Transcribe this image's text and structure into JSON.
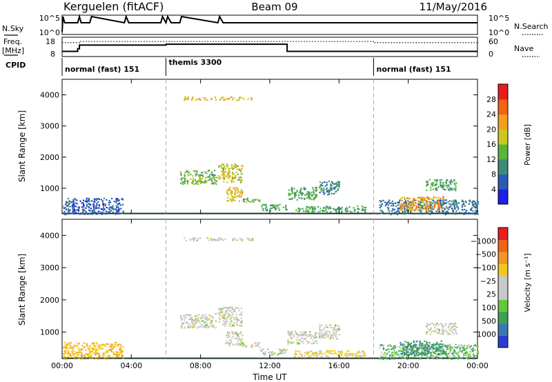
{
  "header": {
    "station": "Kerguelen (fitACF)",
    "beam": "Beam 09",
    "date": "11/May/2016"
  },
  "top_panels": {
    "nsky_label": "N.Sky",
    "nsky_ticks": [
      "10^5",
      "10^0"
    ],
    "nsearch_label": "N.Search",
    "nsearch_ticks": [
      "10^5",
      "10^0"
    ],
    "freq_label": "Freq.",
    "freq_unit": "[MHz]",
    "freq_ticks": [
      "18",
      "8"
    ],
    "nave_label": "Nave",
    "nave_ticks": [
      "60",
      "0"
    ],
    "cpid_label": "CPID"
  },
  "cpid_segments": [
    {
      "start": 0,
      "end": 6,
      "label": "normal (fast) 151"
    },
    {
      "start": 6,
      "end": 18,
      "label": "themis 3300"
    },
    {
      "start": 18,
      "end": 24,
      "label": "normal (fast) 151"
    }
  ],
  "colors": {
    "power_scale": [
      "#1f1fe6",
      "#2a5ab4",
      "#3c8c78",
      "#5ab43c",
      "#c8c81e",
      "#f0a01e",
      "#f06414",
      "#e61e1e"
    ],
    "velocity_scale": [
      "#2a3cd0",
      "#3c78b4",
      "#3ca05a",
      "#64c83c",
      "#c8c8c8",
      "#c8c8c8",
      "#f0c81e",
      "#f09628",
      "#f06414",
      "#e61e1e"
    ]
  },
  "chart_data": [
    {
      "type": "line",
      "title": "N.Sky / N.Search",
      "x_range": [
        0,
        24
      ],
      "ylim_log10": [
        0,
        5
      ],
      "series": [
        {
          "name": "N.Sky",
          "x": [
            0,
            0.05,
            0.15,
            0.25,
            0.9,
            1.0,
            1.1,
            1.6,
            1.7,
            3.6,
            3.7,
            3.85,
            5.7,
            5.8,
            6.0,
            6.1,
            6.3,
            6.8,
            6.9,
            9.0,
            9.1,
            9.3,
            24
          ],
          "y": [
            0.5,
            5,
            3.2,
            3.2,
            3.2,
            5,
            3.2,
            3.2,
            5,
            3.2,
            5,
            3.2,
            3.2,
            5,
            3.2,
            5,
            3.2,
            3.2,
            5,
            3.2,
            5,
            3.2,
            3.2
          ]
        },
        {
          "name": "N.Search",
          "x": [
            0,
            24
          ],
          "y": [
            3.2,
            3.2
          ]
        }
      ]
    },
    {
      "type": "line",
      "title": "Freq. / Nave",
      "x_range": [
        0,
        24
      ],
      "series": [
        {
          "name": "Freq. (MHz)",
          "ylim": [
            8,
            18
          ],
          "x": [
            0,
            0.9,
            0.9,
            1.0,
            1.0,
            6.0,
            6.0,
            13.0,
            13.0,
            24
          ],
          "y": [
            10.5,
            10.5,
            12.0,
            12.0,
            14.0,
            14.0,
            14.5,
            14.5,
            10.5,
            10.5
          ]
        },
        {
          "name": "Nave",
          "ylim": [
            0,
            60
          ],
          "x": [
            0,
            1.0,
            1.0,
            18.0,
            18.0,
            24
          ],
          "y": [
            44,
            44,
            48,
            48,
            44,
            44
          ]
        }
      ]
    },
    {
      "type": "heatmap",
      "title": "Power",
      "xlabel": "",
      "ylabel": "Slant Range [km]",
      "x_range": [
        0,
        24
      ],
      "ylim": [
        180,
        4500
      ],
      "x_ticks": [
        "00:00",
        "04:00",
        "08:00",
        "12:00",
        "16:00",
        "20:00",
        "00:00"
      ],
      "y_ticks": [
        1000,
        2000,
        3000,
        4000
      ],
      "colorbar_label": "Power [dB]",
      "colorbar_ticks": [
        4,
        8,
        12,
        16,
        20,
        24,
        28
      ],
      "echoes": [
        {
          "x": [
            0.0,
            3.5
          ],
          "range": [
            180,
            700
          ],
          "value": 6
        },
        {
          "x": [
            6.8,
            8.9
          ],
          "range": [
            1150,
            1600
          ],
          "value": 14
        },
        {
          "x": [
            9.0,
            10.4
          ],
          "range": [
            1200,
            1800
          ],
          "value": 18
        },
        {
          "x": [
            9.4,
            10.4
          ],
          "range": [
            600,
            1050
          ],
          "value": 20
        },
        {
          "x": [
            10.4,
            11.4
          ],
          "range": [
            550,
            700
          ],
          "value": 14
        },
        {
          "x": [
            11.4,
            13.0
          ],
          "range": [
            300,
            500
          ],
          "value": 12
        },
        {
          "x": [
            13.0,
            14.7
          ],
          "range": [
            650,
            1050
          ],
          "value": 12
        },
        {
          "x": [
            14.8,
            16.0
          ],
          "range": [
            800,
            1250
          ],
          "value": 10
        },
        {
          "x": [
            13.4,
            17.5
          ],
          "range": [
            250,
            450
          ],
          "value": 12
        },
        {
          "x": [
            18.3,
            24.0
          ],
          "range": [
            180,
            650
          ],
          "value": 8
        },
        {
          "x": [
            19.5,
            22.0
          ],
          "range": [
            300,
            750
          ],
          "value": 22
        },
        {
          "x": [
            21.0,
            22.8
          ],
          "range": [
            950,
            1300
          ],
          "value": 12
        },
        {
          "x": [
            7.0,
            11.0
          ],
          "range": [
            3850,
            3950
          ],
          "value": 20
        }
      ]
    },
    {
      "type": "heatmap",
      "title": "Velocity",
      "xlabel": "Time UT",
      "ylabel": "Slant Range [km]",
      "x_range": [
        0,
        24
      ],
      "ylim": [
        180,
        4500
      ],
      "x_ticks": [
        "00:00",
        "04:00",
        "08:00",
        "12:00",
        "16:00",
        "20:00",
        "00:00"
      ],
      "y_ticks": [
        1000,
        2000,
        3000,
        4000
      ],
      "colorbar_label": "Velocity [m s⁻¹]",
      "colorbar_ticks": [
        "1000",
        "500",
        "100",
        "25",
        "−25",
        "−100",
        "−500",
        "−1000"
      ],
      "echoes": [
        {
          "x": [
            0.0,
            3.5
          ],
          "range": [
            180,
            700
          ],
          "value": -80
        },
        {
          "x": [
            6.8,
            8.9
          ],
          "range": [
            1150,
            1600
          ],
          "value": 0
        },
        {
          "x": [
            9.0,
            10.4
          ],
          "range": [
            1200,
            1800
          ],
          "value": 0
        },
        {
          "x": [
            9.4,
            10.4
          ],
          "range": [
            600,
            1050
          ],
          "value": 0
        },
        {
          "x": [
            10.4,
            11.4
          ],
          "range": [
            550,
            700
          ],
          "value": 0
        },
        {
          "x": [
            11.4,
            13.0
          ],
          "range": [
            300,
            500
          ],
          "value": 0
        },
        {
          "x": [
            13.0,
            14.7
          ],
          "range": [
            650,
            1050
          ],
          "value": 0
        },
        {
          "x": [
            14.8,
            16.0
          ],
          "range": [
            800,
            1250
          ],
          "value": 0
        },
        {
          "x": [
            13.4,
            17.5
          ],
          "range": [
            250,
            450
          ],
          "value": -40
        },
        {
          "x": [
            18.3,
            24.0
          ],
          "range": [
            180,
            650
          ],
          "value": 40
        },
        {
          "x": [
            19.5,
            22.0
          ],
          "range": [
            300,
            750
          ],
          "value": 90
        },
        {
          "x": [
            21.0,
            22.8
          ],
          "range": [
            950,
            1300
          ],
          "value": 0
        },
        {
          "x": [
            7.0,
            11.0
          ],
          "range": [
            3850,
            3950
          ],
          "value": 0
        }
      ]
    }
  ]
}
